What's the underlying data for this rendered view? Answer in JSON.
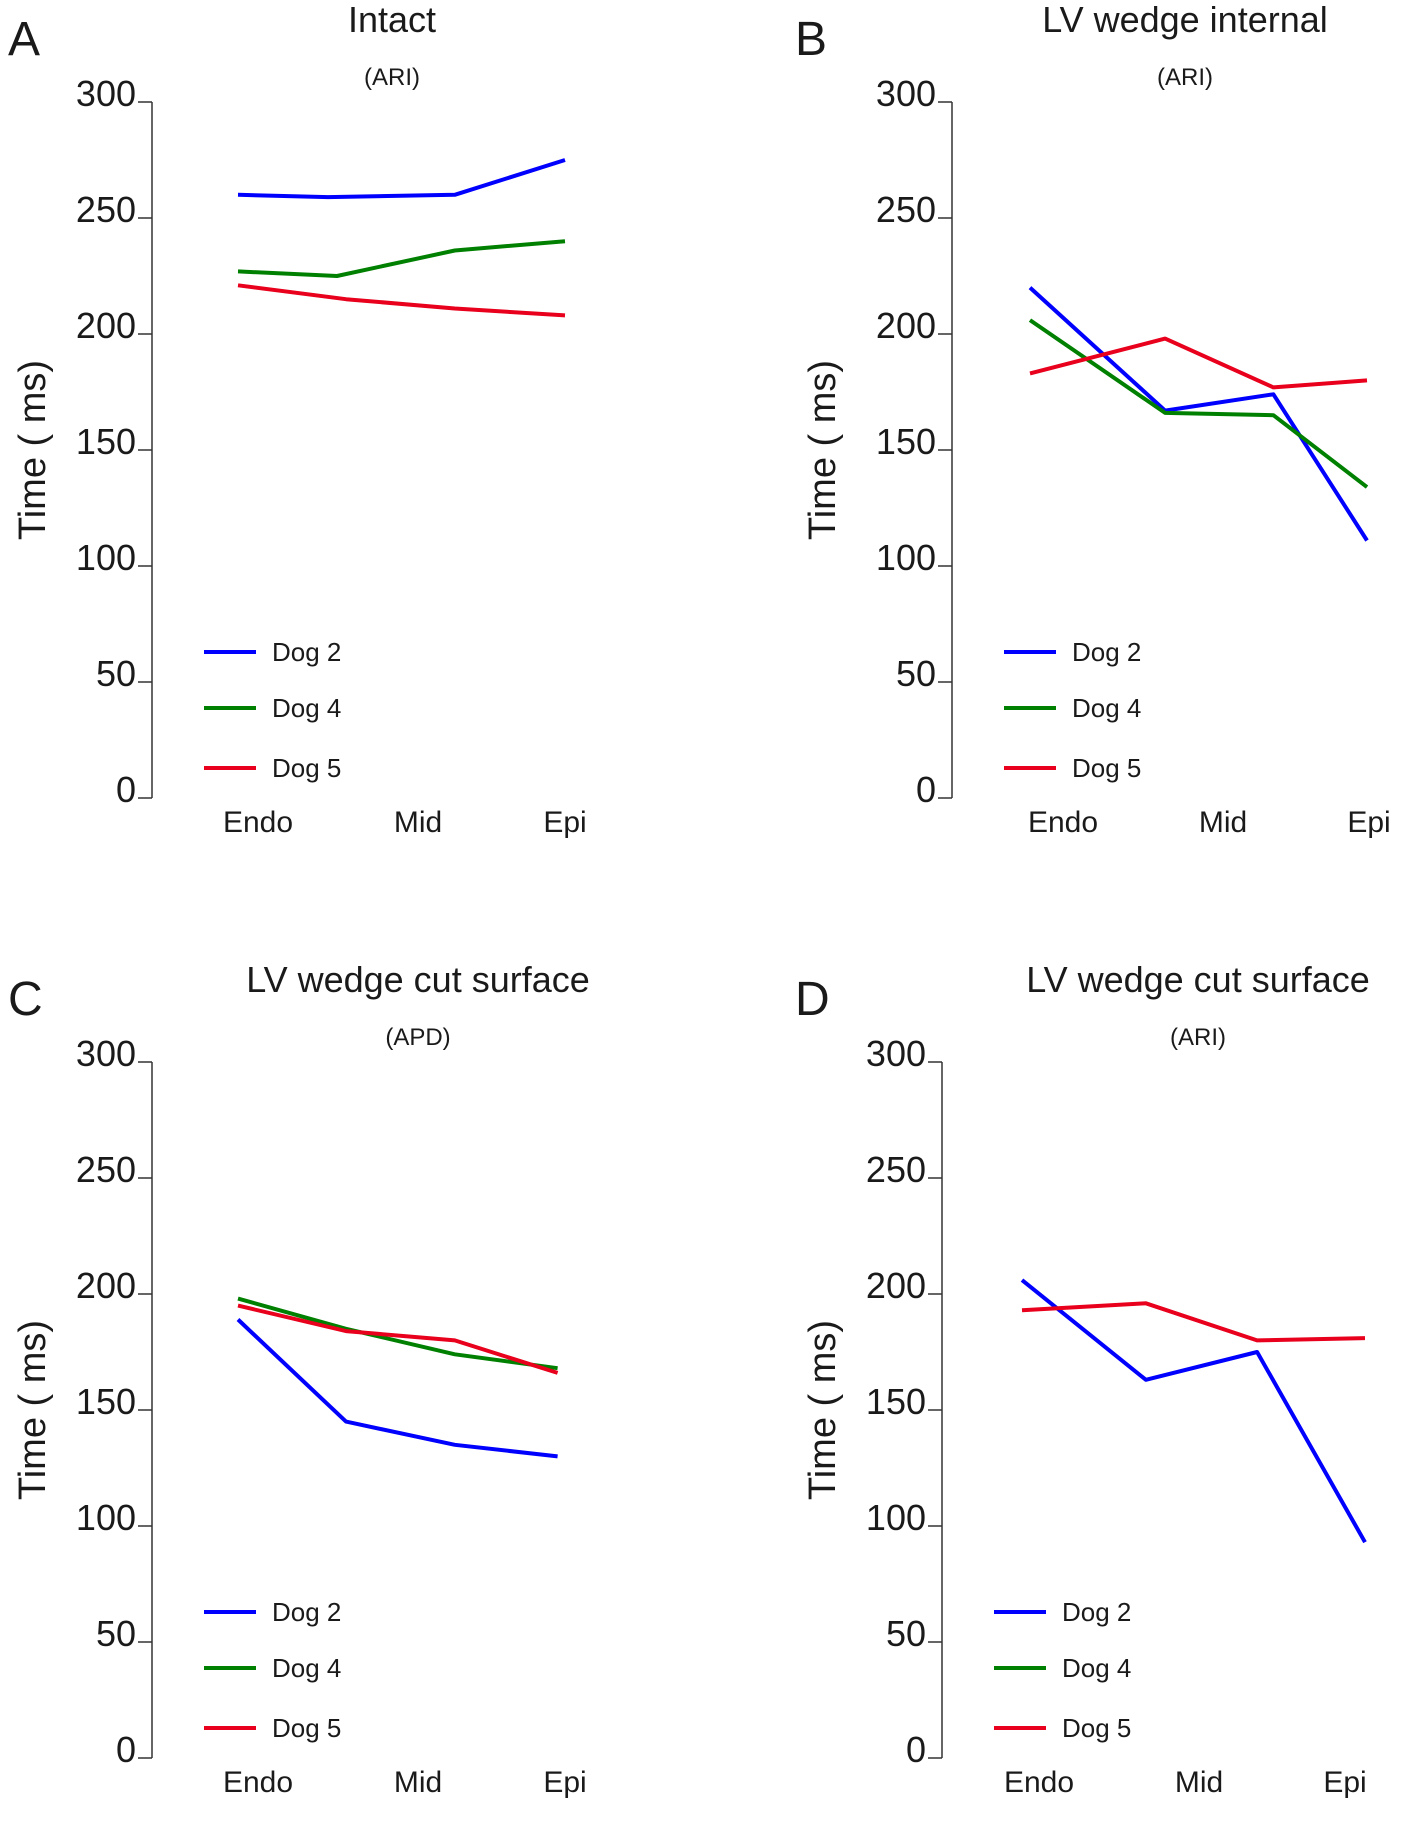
{
  "chart_data": [
    {
      "panel": "A",
      "type": "line",
      "title": "Intact",
      "subtitle": "(ARI)",
      "ylabel": "Time ( ms)",
      "xlabel": "",
      "categories": [
        "Endo",
        "Mid",
        "Epi"
      ],
      "ylim": [
        0,
        300
      ],
      "yticks": [
        "0",
        "50",
        "100",
        "150",
        "200",
        "250",
        "300"
      ],
      "legend_position": "bottom-left",
      "series": [
        {
          "name": "Dog 2",
          "color": "#0000ff",
          "x": [
            0,
            0.5,
            1.25,
            2.0
          ],
          "values": [
            260,
            259,
            260,
            275
          ]
        },
        {
          "name": "Dog 4",
          "color": "#008000",
          "x": [
            0,
            0.55,
            1.25,
            2.0
          ],
          "values": [
            227,
            225,
            236,
            240
          ]
        },
        {
          "name": "Dog 5",
          "color": "#e8001c",
          "x": [
            0,
            0.6,
            1.25,
            2.0
          ],
          "values": [
            221,
            215,
            211,
            208
          ]
        }
      ]
    },
    {
      "panel": "B",
      "type": "line",
      "title": "LV wedge internal",
      "subtitle": "(ARI)",
      "ylabel": "Time ( ms)",
      "xlabel": "",
      "categories": [
        "Endo",
        "Mid",
        "Epi"
      ],
      "ylim": [
        0,
        300
      ],
      "yticks": [
        "0",
        "50",
        "100",
        "150",
        "200",
        "250",
        "300"
      ],
      "legend_position": "bottom-left",
      "series": [
        {
          "name": "Dog 2",
          "color": "#0000ff",
          "x": [
            0,
            0.7,
            1.35,
            2.0
          ],
          "values": [
            220,
            167,
            174,
            111
          ]
        },
        {
          "name": "Dog 4",
          "color": "#008000",
          "x": [
            0,
            0.7,
            1.35,
            2.0
          ],
          "values": [
            206,
            166,
            165,
            134
          ]
        },
        {
          "name": "Dog 5",
          "color": "#e8001c",
          "x": [
            0,
            0.7,
            1.35,
            2.0
          ],
          "values": [
            183,
            198,
            177,
            180
          ]
        }
      ]
    },
    {
      "panel": "C",
      "type": "line",
      "title": "LV wedge cut surface",
      "subtitle": "(APD)",
      "ylabel": "Time ( ms)",
      "xlabel": "",
      "categories": [
        "Endo",
        "Mid",
        "Epi"
      ],
      "ylim": [
        0,
        300
      ],
      "yticks": [
        "0",
        "50",
        "100",
        "150",
        "200",
        "250",
        "300"
      ],
      "legend_position": "bottom-left",
      "series": [
        {
          "name": "Dog 2",
          "color": "#0000ff",
          "x": [
            0,
            0.6,
            1.25,
            1.95
          ],
          "values": [
            189,
            145,
            135,
            130
          ]
        },
        {
          "name": "Dog 4",
          "color": "#008000",
          "x": [
            0,
            0.6,
            1.25,
            1.95
          ],
          "values": [
            198,
            185,
            174,
            168
          ]
        },
        {
          "name": "Dog 5",
          "color": "#e8001c",
          "x": [
            0,
            0.6,
            1.25,
            1.95
          ],
          "values": [
            195,
            184,
            180,
            166
          ]
        }
      ]
    },
    {
      "panel": "D",
      "type": "line",
      "title": "LV wedge cut surface",
      "subtitle": "(ARI)",
      "ylabel": "Time ( ms)",
      "xlabel": "",
      "categories": [
        "Endo",
        "Mid",
        "Epi"
      ],
      "ylim": [
        0,
        300
      ],
      "yticks": [
        "0",
        "50",
        "100",
        "150",
        "200",
        "250",
        "300"
      ],
      "legend_position": "bottom-left",
      "series": [
        {
          "name": "Dog 2",
          "color": "#0000ff",
          "x": [
            0,
            0.7,
            1.35,
            2.0
          ],
          "values": [
            206,
            163,
            175,
            93
          ]
        },
        {
          "name": "Dog 4",
          "color": "#008000",
          "x": [],
          "values": []
        },
        {
          "name": "Dog 5",
          "color": "#e8001c",
          "x": [
            0,
            0.7,
            1.35,
            2.0
          ],
          "values": [
            193,
            196,
            180,
            181
          ]
        }
      ]
    }
  ]
}
